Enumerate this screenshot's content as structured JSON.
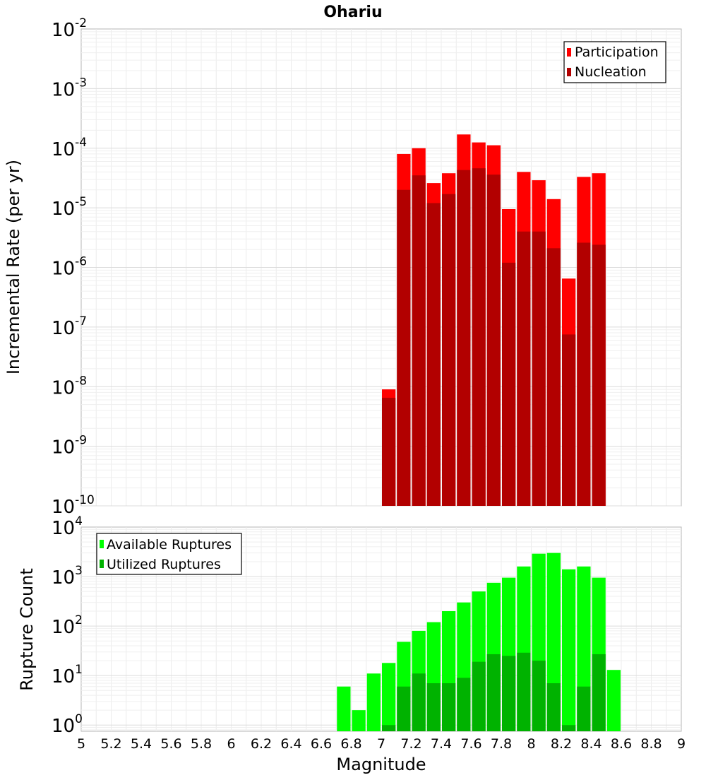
{
  "chart_data": [
    {
      "type": "bar",
      "title": "Ohariu",
      "ylabel": "Incremental Rate (per yr)",
      "xlabel": "",
      "y_scale": "log",
      "ylim": [
        1e-10,
        0.01
      ],
      "xlim": [
        5,
        9
      ],
      "x_ticks": [],
      "y_tick_exponents": [
        "-10",
        "-9",
        "-8",
        "-7",
        "-6",
        "-5",
        "-4",
        "-3",
        "-2"
      ],
      "y_tick_base": "10",
      "grid": true,
      "legend_placement": "top-right",
      "bar_width": 0.1,
      "colors": {
        "Participation": "#ff0000",
        "Nucleation": "#b20000"
      },
      "series": [
        {
          "name": "Participation",
          "x": [
            7.05,
            7.15,
            7.25,
            7.35,
            7.45,
            7.55,
            7.65,
            7.75,
            7.85,
            7.95,
            8.05,
            8.15,
            8.25,
            8.35,
            8.45
          ],
          "values": [
            9e-09,
            8e-05,
            0.0001,
            2.6e-05,
            3.8e-05,
            0.00017,
            0.000125,
            0.000112,
            9.5e-06,
            4e-05,
            2.9e-05,
            1.4e-05,
            6.5e-07,
            3.3e-05,
            3.8e-05
          ]
        },
        {
          "name": "Nucleation",
          "x": [
            7.05,
            7.15,
            7.25,
            7.35,
            7.45,
            7.55,
            7.65,
            7.75,
            7.85,
            7.95,
            8.05,
            8.15,
            8.25,
            8.35,
            8.45
          ],
          "values": [
            6.5e-09,
            2e-05,
            3.5e-05,
            1.2e-05,
            1.7e-05,
            4.3e-05,
            4.6e-05,
            3.6e-05,
            1.2e-06,
            4e-06,
            4e-06,
            2.1e-06,
            7.5e-08,
            2.6e-06,
            2.4e-06
          ]
        }
      ]
    },
    {
      "type": "bar",
      "title": "",
      "ylabel": "Rupture Count",
      "xlabel": "Magnitude",
      "y_scale": "log",
      "ylim": [
        0.75,
        10000
      ],
      "xlim": [
        5,
        9
      ],
      "x_ticks": [
        "5",
        "5.2",
        "5.4",
        "5.6",
        "5.8",
        "6",
        "6.2",
        "6.4",
        "6.6",
        "6.8",
        "7",
        "7.2",
        "7.4",
        "7.6",
        "7.8",
        "8",
        "8.2",
        "8.4",
        "8.6",
        "8.8",
        "9"
      ],
      "y_tick_exponents": [
        "0",
        "1",
        "2",
        "3",
        "4"
      ],
      "y_tick_base": "10",
      "grid": true,
      "legend_placement": "top-left",
      "bar_width": 0.1,
      "colors": {
        "Available Ruptures": "#00ff00",
        "Utilized Ruptures": "#00b200"
      },
      "series": [
        {
          "name": "Available Ruptures",
          "x": [
            6.75,
            6.85,
            6.95,
            7.05,
            7.15,
            7.25,
            7.35,
            7.45,
            7.55,
            7.65,
            7.75,
            7.85,
            7.95,
            8.05,
            8.15,
            8.25,
            8.35,
            8.45,
            8.55
          ],
          "values": [
            6,
            2,
            11,
            18,
            48,
            80,
            120,
            200,
            300,
            500,
            750,
            950,
            1600,
            2900,
            3000,
            1400,
            1600,
            950,
            13
          ]
        },
        {
          "name": "Utilized Ruptures",
          "x": [
            7.05,
            7.15,
            7.25,
            7.35,
            7.45,
            7.55,
            7.65,
            7.75,
            7.85,
            7.95,
            8.05,
            8.15,
            8.25,
            8.35,
            8.45
          ],
          "values": [
            1,
            6,
            11,
            7,
            7,
            9,
            19,
            27,
            25,
            29,
            20,
            7,
            1,
            6,
            27
          ]
        }
      ]
    }
  ]
}
